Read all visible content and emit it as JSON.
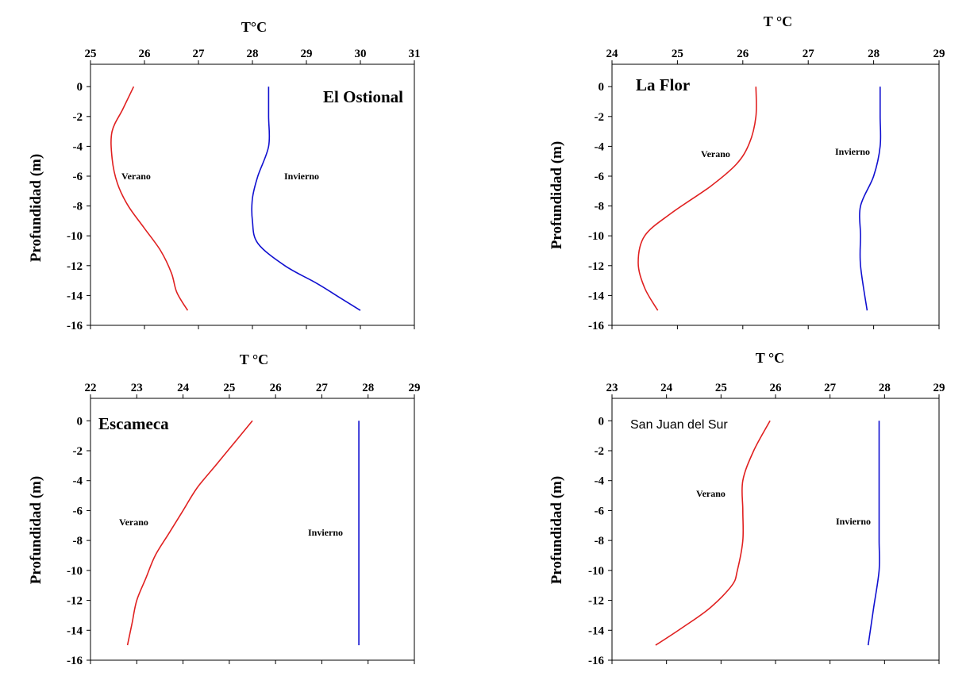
{
  "chart_data": [
    {
      "type": "line",
      "title": "El Ostional",
      "xlabel": "T°C",
      "ylabel": "Profundidad (m)",
      "xlim": [
        25,
        31
      ],
      "ylim": [
        -16,
        1.5
      ],
      "xticks": [
        "25",
        "26",
        "27",
        "28",
        "29",
        "30",
        "31"
      ],
      "yticks": [
        "0",
        "-2",
        "-4",
        "-6",
        "-8",
        "-10",
        "-12",
        "-14",
        "-16"
      ],
      "series": [
        {
          "name": "Verano",
          "color": "#e02020",
          "temp": [
            25.8,
            25.6,
            25.4,
            25.4,
            25.5,
            25.7,
            26.0,
            26.3,
            26.5,
            26.6,
            26.8
          ],
          "depth": [
            0,
            -1.5,
            -3,
            -4.8,
            -6.5,
            -8,
            -9.5,
            -11,
            -12.5,
            -13.8,
            -15
          ]
        },
        {
          "name": "Invierno",
          "color": "#1010d0",
          "temp": [
            28.3,
            28.3,
            28.3,
            28.1,
            28.0,
            28.0,
            28.1,
            28.6,
            29.2,
            29.6,
            30.0
          ],
          "depth": [
            0,
            -2,
            -4,
            -6,
            -7.5,
            -9,
            -10.5,
            -12,
            -13.2,
            -14.1,
            -15
          ]
        }
      ],
      "labels": {
        "verano": "Verano",
        "invierno": "Invierno"
      }
    },
    {
      "type": "line",
      "title": "La Flor",
      "xlabel": "T °C",
      "ylabel": "Profundidad (m)",
      "xlim": [
        24,
        29
      ],
      "ylim": [
        -16,
        1.5
      ],
      "xticks": [
        "24",
        "25",
        "26",
        "27",
        "28",
        "29"
      ],
      "yticks": [
        "0",
        "-2",
        "-4",
        "-6",
        "-8",
        "-10",
        "-12",
        "-14",
        "-16"
      ],
      "series": [
        {
          "name": "Verano",
          "color": "#e02020",
          "temp": [
            26.2,
            26.2,
            26.1,
            25.9,
            25.5,
            24.9,
            24.5,
            24.4,
            24.5,
            24.7
          ],
          "depth": [
            0,
            -2,
            -3.8,
            -5.2,
            -6.7,
            -8.5,
            -10,
            -11.8,
            -13.5,
            -15
          ]
        },
        {
          "name": "Invierno",
          "color": "#1010d0",
          "temp": [
            28.1,
            28.1,
            28.1,
            28.0,
            27.8,
            27.8,
            27.8,
            27.9
          ],
          "depth": [
            0,
            -2,
            -4,
            -6,
            -8,
            -10,
            -12,
            -15
          ]
        }
      ],
      "labels": {
        "verano": "Verano",
        "invierno": "Invierno"
      }
    },
    {
      "type": "line",
      "title": "Escameca",
      "xlabel": "T °C",
      "ylabel": "Profundidad (m)",
      "xlim": [
        22,
        29
      ],
      "ylim": [
        -16,
        1.5
      ],
      "xticks": [
        "22",
        "23",
        "24",
        "25",
        "26",
        "27",
        "28",
        "29"
      ],
      "yticks": [
        "0",
        "-2",
        "-4",
        "-6",
        "-8",
        "-10",
        "-12",
        "-14",
        "-16"
      ],
      "series": [
        {
          "name": "Verano",
          "color": "#e02020",
          "temp": [
            25.5,
            25.1,
            24.7,
            24.3,
            24.0,
            23.7,
            23.4,
            23.2,
            23.0,
            22.9,
            22.8
          ],
          "depth": [
            0,
            -1.5,
            -3,
            -4.5,
            -6,
            -7.5,
            -9,
            -10.5,
            -12,
            -13.5,
            -15
          ]
        },
        {
          "name": "Invierno",
          "color": "#1010d0",
          "temp": [
            27.8,
            27.8,
            27.8,
            27.8,
            27.8,
            27.8,
            27.8
          ],
          "depth": [
            0,
            -2.5,
            -5,
            -7.5,
            -10,
            -12.5,
            -15
          ]
        }
      ],
      "labels": {
        "verano": "Verano",
        "invierno": "Invierno"
      }
    },
    {
      "type": "line",
      "title": "San Juan del Sur",
      "xlabel": "T °C",
      "ylabel": "Profundidad (m)",
      "xlim": [
        23,
        29
      ],
      "ylim": [
        -16,
        1.5
      ],
      "xticks": [
        "23",
        "24",
        "25",
        "26",
        "27",
        "28",
        "29"
      ],
      "yticks": [
        "0",
        "-2",
        "-4",
        "-6",
        "-8",
        "-10",
        "-12",
        "-14",
        "-16"
      ],
      "series": [
        {
          "name": "Verano",
          "color": "#e02020",
          "temp": [
            25.9,
            25.6,
            25.4,
            25.4,
            25.4,
            25.3,
            25.2,
            24.8,
            24.3,
            23.8
          ],
          "depth": [
            0,
            -2,
            -4,
            -6,
            -8,
            -10,
            -11,
            -12.5,
            -13.8,
            -15
          ]
        },
        {
          "name": "Invierno",
          "color": "#1010d0",
          "temp": [
            27.9,
            27.9,
            27.9,
            27.9,
            27.9,
            27.9,
            27.8,
            27.7
          ],
          "depth": [
            0,
            -2,
            -4,
            -6,
            -8,
            -10,
            -12.5,
            -15
          ]
        }
      ],
      "labels": {
        "verano": "Verano",
        "invierno": "Invierno"
      }
    }
  ]
}
